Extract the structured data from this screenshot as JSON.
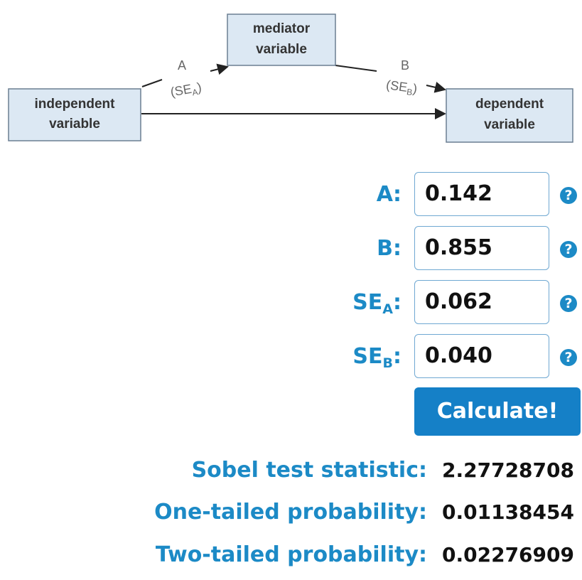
{
  "diagram": {
    "nodes": [
      {
        "label": [
          "independent",
          "variable"
        ]
      },
      {
        "label": [
          "mediator",
          "variable"
        ]
      },
      {
        "label": [
          "dependent",
          "variable"
        ]
      }
    ],
    "edges": [
      {
        "label": "A",
        "se": [
          "(SE",
          "A",
          ")"
        ]
      },
      {
        "label": "B",
        "se": [
          "(SE",
          "B",
          ")"
        ]
      }
    ]
  },
  "form": {
    "fields": [
      {
        "label": [
          "A",
          "",
          ":"
        ],
        "value": "0.142"
      },
      {
        "label": [
          "B",
          "",
          ":"
        ],
        "value": "0.855"
      },
      {
        "label": [
          "SE",
          "A",
          ":"
        ],
        "value": "0.062"
      },
      {
        "label": [
          "SE",
          "B",
          ":"
        ],
        "value": "0.040"
      }
    ],
    "help_icon": "?",
    "button": "Calculate!"
  },
  "results": [
    {
      "label": "Sobel test statistic:",
      "value": "2.27728708"
    },
    {
      "label": "One-tailed probability:",
      "value": "0.01138454"
    },
    {
      "label": "Two-tailed probability:",
      "value": "0.02276909"
    }
  ]
}
